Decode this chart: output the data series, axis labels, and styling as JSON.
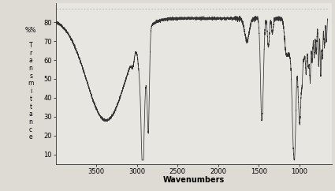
{
  "title": "",
  "xlabel": "Wavenumbers",
  "ylabel_stacked": [
    "%%",
    " ",
    "T",
    "r",
    "a",
    "n",
    "s",
    "m",
    "i",
    "t",
    "t",
    "a",
    "n",
    "c",
    "e"
  ],
  "xlim": [
    4000,
    600
  ],
  "ylim": [
    5,
    90
  ],
  "yticks": [
    10,
    20,
    30,
    40,
    50,
    60,
    70,
    80
  ],
  "xticks": [
    3500,
    3000,
    2500,
    2000,
    1500,
    1000
  ],
  "line_color": "#333333",
  "bg_color": "#e8e6e0",
  "fig_color": "#dedad4"
}
